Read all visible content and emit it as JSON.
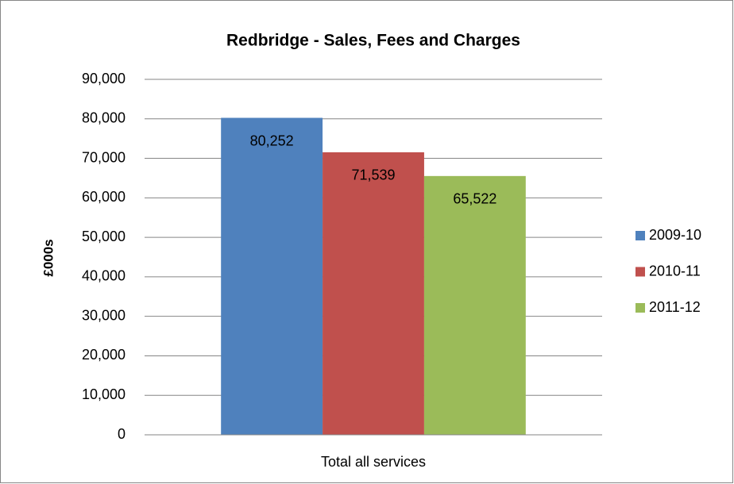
{
  "chart_data": {
    "type": "bar",
    "title": "Redbridge - Sales, Fees and Charges",
    "y_label": "£000s",
    "categories": [
      "Total all services"
    ],
    "series": [
      {
        "name": "2009-10",
        "color": "#4f81bd",
        "values": [
          80252
        ],
        "value_labels": [
          "80,252"
        ]
      },
      {
        "name": "2010-11",
        "color": "#c0504d",
        "values": [
          71539
        ],
        "value_labels": [
          "71,539"
        ]
      },
      {
        "name": "2011-12",
        "color": "#9bbb59",
        "values": [
          65522
        ],
        "value_labels": [
          "65,522"
        ]
      }
    ],
    "ylim": [
      0,
      90000
    ],
    "yticks": [
      0,
      {
        "value": 10000,
        "label": "10,000"
      },
      {
        "value": 20000,
        "label": "20,000"
      },
      {
        "value": 30000,
        "label": "30,000"
      },
      {
        "value": 40000,
        "label": "40,000"
      },
      {
        "value": 50000,
        "label": "50,000"
      },
      {
        "value": 60000,
        "label": "60,000"
      },
      {
        "value": 70000,
        "label": "70,000"
      },
      {
        "value": 80000,
        "label": "80,000"
      },
      {
        "value": 90000,
        "label": "90,000"
      }
    ],
    "grid": true,
    "legend": "right"
  }
}
